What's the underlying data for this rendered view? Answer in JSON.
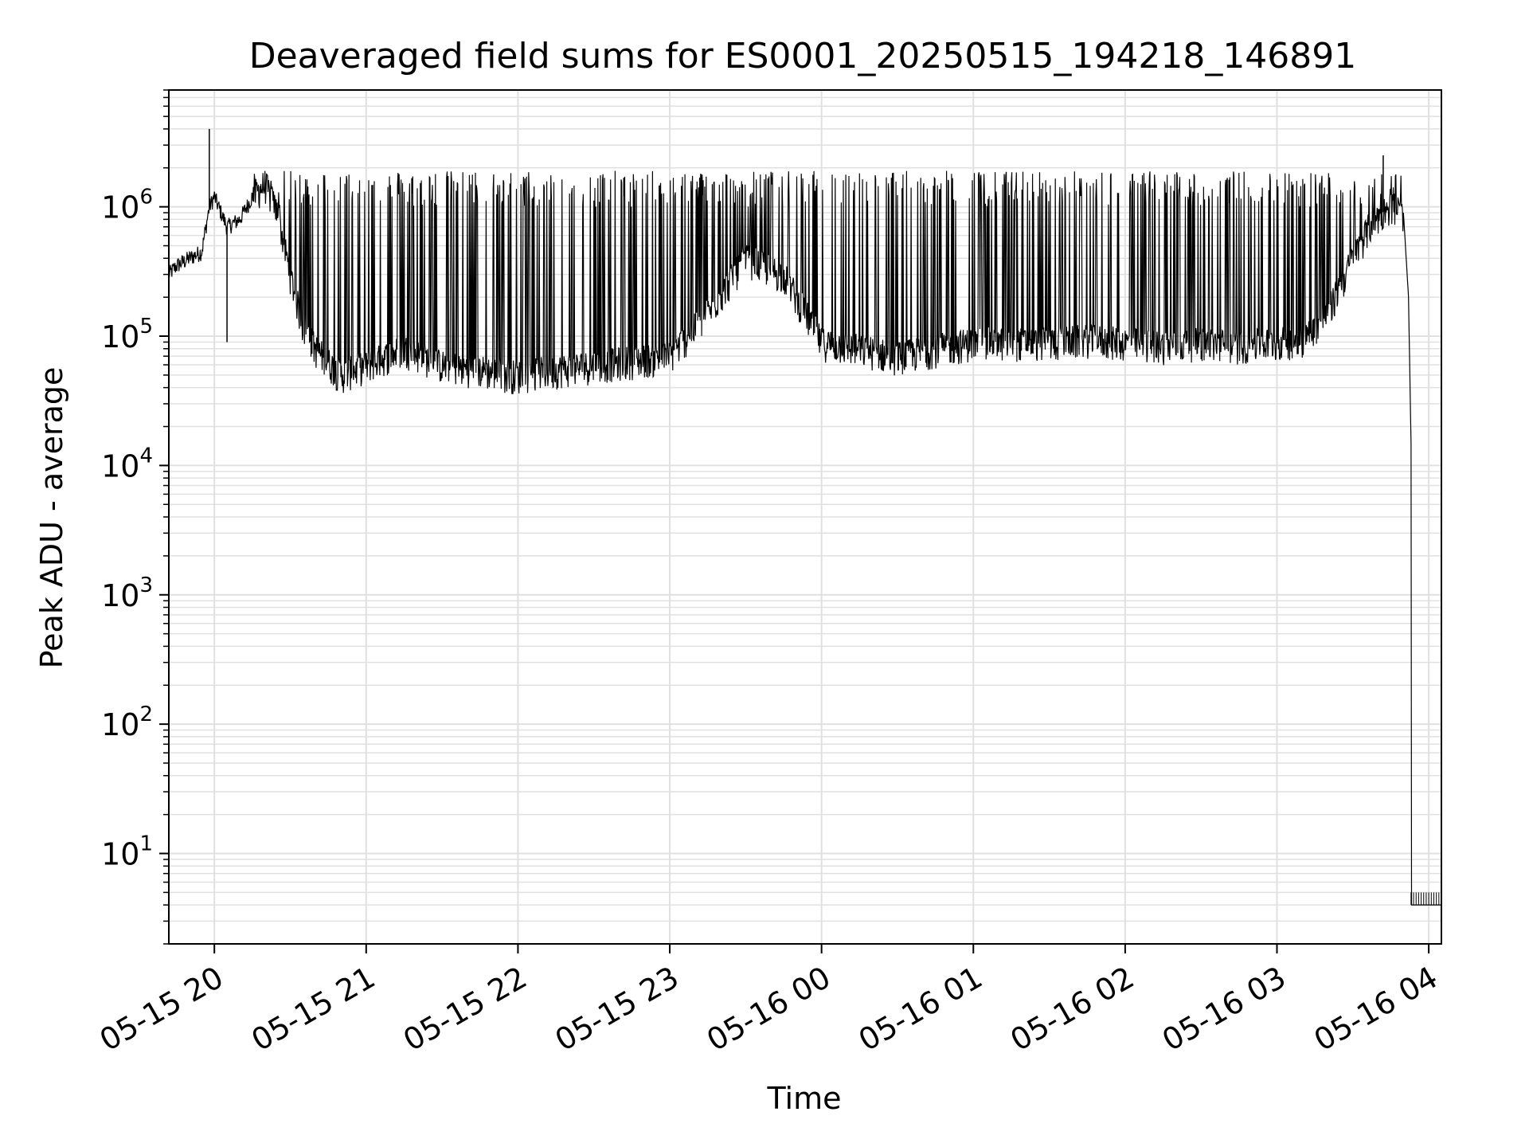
{
  "chart_data": {
    "type": "line",
    "title": "Deaveraged field sums for ES0001_20250515_194218_146891",
    "xlabel": "Time",
    "ylabel": "Peak ADU - average",
    "yscale": "log",
    "grid": true,
    "line_color": "#000000",
    "grid_color": "#e0e0e0",
    "xlim": [
      "2025-05-15 19:42",
      "2025-05-16 04:05"
    ],
    "ylim": [
      2,
      8000000
    ],
    "x_ticks": [
      {
        "value": "2025-05-15 20:00",
        "label": "05-15 20"
      },
      {
        "value": "2025-05-15 21:00",
        "label": "05-15 21"
      },
      {
        "value": "2025-05-15 22:00",
        "label": "05-15 22"
      },
      {
        "value": "2025-05-15 23:00",
        "label": "05-15 23"
      },
      {
        "value": "2025-05-16 00:00",
        "label": "05-16 00"
      },
      {
        "value": "2025-05-16 01:00",
        "label": "05-16 01"
      },
      {
        "value": "2025-05-16 02:00",
        "label": "05-16 02"
      },
      {
        "value": "2025-05-16 03:00",
        "label": "05-16 03"
      },
      {
        "value": "2025-05-16 04:00",
        "label": "05-16 04"
      }
    ],
    "y_ticks": [
      {
        "value": 10,
        "base": "10",
        "exp": "1"
      },
      {
        "value": 100,
        "base": "10",
        "exp": "2"
      },
      {
        "value": 1000,
        "base": "10",
        "exp": "3"
      },
      {
        "value": 10000,
        "base": "10",
        "exp": "4"
      },
      {
        "value": 100000,
        "base": "10",
        "exp": "5"
      },
      {
        "value": 1000000,
        "base": "10",
        "exp": "6"
      }
    ],
    "series": [
      {
        "x": [
          "2025-05-15 19:42",
          "2025-05-15 19:45",
          "2025-05-15 19:50",
          "2025-05-15 19:55",
          "2025-05-15 19:58",
          "2025-05-15 20:00",
          "2025-05-15 20:05",
          "2025-05-15 20:10",
          "2025-05-15 20:15",
          "2025-05-15 20:20",
          "2025-05-15 20:25",
          "2025-05-15 20:30",
          "2025-05-15 20:35",
          "2025-05-15 20:40",
          "2025-05-15 20:50",
          "2025-05-15 21:00",
          "2025-05-15 21:15",
          "2025-05-15 21:30",
          "2025-05-15 21:45",
          "2025-05-15 22:00",
          "2025-05-15 22:15",
          "2025-05-15 22:30",
          "2025-05-15 22:45",
          "2025-05-15 23:00",
          "2025-05-15 23:15",
          "2025-05-15 23:30",
          "2025-05-15 23:45",
          "2025-05-16 00:00",
          "2025-05-16 00:15",
          "2025-05-16 00:30",
          "2025-05-16 00:45",
          "2025-05-16 01:00",
          "2025-05-16 01:15",
          "2025-05-16 01:30",
          "2025-05-16 01:45",
          "2025-05-16 02:00",
          "2025-05-16 02:15",
          "2025-05-16 02:30",
          "2025-05-16 02:45",
          "2025-05-16 03:00",
          "2025-05-16 03:10",
          "2025-05-16 03:20",
          "2025-05-16 03:30",
          "2025-05-16 03:38",
          "2025-05-16 03:45",
          "2025-05-16 03:50",
          "2025-05-16 03:52",
          "2025-05-16 03:53",
          "2025-05-16 04:05"
        ],
        "y": [
          300000,
          350000,
          400000,
          450000,
          1000000,
          1200000,
          700000,
          800000,
          1200000,
          1500000,
          900000,
          300000,
          120000,
          80000,
          50000,
          60000,
          80000,
          60000,
          55000,
          50000,
          55000,
          60000,
          65000,
          70000,
          150000,
          400000,
          300000,
          90000,
          80000,
          70000,
          80000,
          90000,
          90000,
          90000,
          95000,
          90000,
          85000,
          90000,
          85000,
          90000,
          95000,
          150000,
          400000,
          800000,
          1000000,
          900000,
          200000,
          15000,
          4
        ]
      }
    ],
    "spikes": [
      {
        "x": "2025-05-15 19:58",
        "y": 4000000
      },
      {
        "x": "2025-05-15 20:05",
        "y": 90000
      },
      {
        "x": "2025-05-16 03:42",
        "y": 2500000
      }
    ],
    "dense_band_note_free": true
  }
}
